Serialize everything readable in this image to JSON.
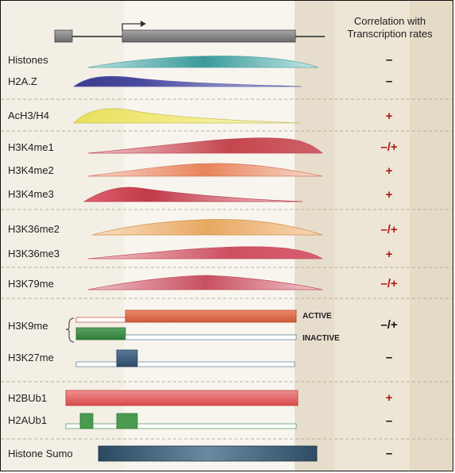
{
  "header": {
    "line1": "Correlation with",
    "line2": "Transcription rates"
  },
  "colors": {
    "histones": "#3a9a9a",
    "h2az": "#3c3c8e",
    "ach3h4": "#e8e05a",
    "h3k4me1": "#c4464e",
    "h3k4me2": "#e8845a",
    "h3k4me3": "#c23a48",
    "h3k36me2": "#e8a860",
    "h3k36me3": "#cc5060",
    "h3k79me": "#c85060",
    "h3k9me_active": "#e0684a",
    "h3k9me_inactive": "#3e8a46",
    "h3k27me": "#3c5a7a",
    "h2bub1": "#e05a5a",
    "h2aub1": "#4a9a50",
    "sumo": "#3a5870",
    "plus": "#b01818",
    "minus": "#111111"
  },
  "rows": [
    {
      "label": "Histones",
      "sign": "–"
    },
    {
      "label": "H2A.Z",
      "sign": "–"
    },
    {
      "label": "AcH3/H4",
      "sign": "+"
    },
    {
      "label": "H3K4me1",
      "sign": "–/+"
    },
    {
      "label": "H3K4me2",
      "sign": "+"
    },
    {
      "label": "H3K4me3",
      "sign": "+"
    },
    {
      "label": "H3K36me2",
      "sign": "–/+"
    },
    {
      "label": "H3K36me3",
      "sign": "+"
    },
    {
      "label": "H3K79me",
      "sign": "–/+"
    },
    {
      "label": "H3K9me",
      "sign": "–/+"
    },
    {
      "label": "H3K27me",
      "sign": "–"
    },
    {
      "label": "H2BUb1",
      "sign": "+"
    },
    {
      "label": "H2AUb1",
      "sign": "–"
    },
    {
      "label": "Histone Sumo",
      "sign": "–"
    }
  ],
  "h3k9me_states": {
    "active": "ACTIVE",
    "inactive": "INACTIVE"
  }
}
